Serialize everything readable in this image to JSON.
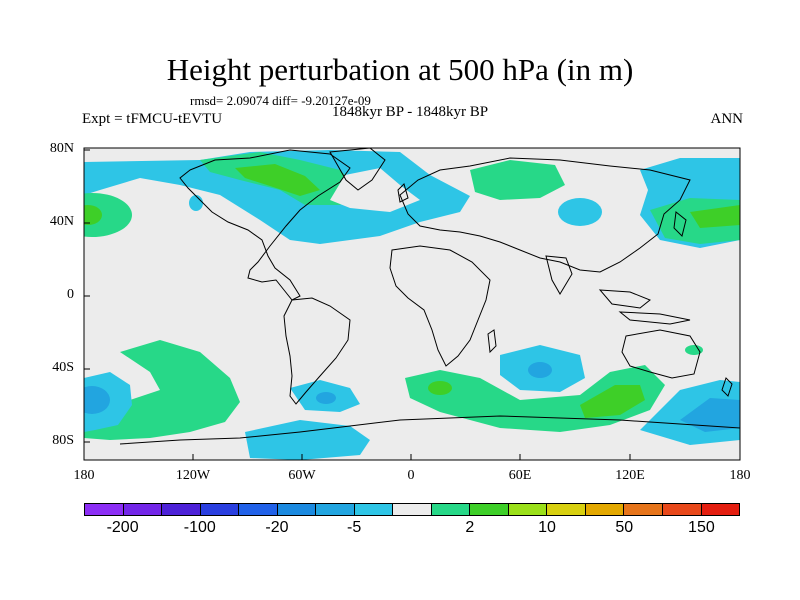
{
  "title": "Height perturbation at 500 hPa (in m)",
  "stats": "rmsd= 2.09074 diff= -9.20127e-09",
  "left_label": "Expt = tFMCU-tEVTU",
  "center_label": "1848kyr BP - 1848kyr BP",
  "right_label": "ANN",
  "lat_labels": [
    "80N",
    "40N",
    "0",
    "40S",
    "80S"
  ],
  "lon_labels": [
    "180",
    "120W",
    "60W",
    "0",
    "60E",
    "120E",
    "180"
  ],
  "colorbar": {
    "colors": [
      "#8c2ef5",
      "#7326e8",
      "#4d22d8",
      "#2a3fe0",
      "#2161e8",
      "#1b8ae0",
      "#22a5e0",
      "#2ec5e6",
      "#ececec",
      "#27d888",
      "#3ecf28",
      "#9be01a",
      "#d8d010",
      "#e3a800",
      "#e6741a",
      "#e8481a",
      "#e41e10"
    ],
    "labels": [
      "-200",
      "-100",
      "-20",
      "-5",
      "2",
      "10",
      "50",
      "150"
    ]
  },
  "colors": {
    "land_line": "#000000",
    "background_field": "#ececec",
    "light_blue": "#2ec5e6",
    "green": "#27d888",
    "bright_green": "#3ecf28",
    "mid_blue": "#22a5e0"
  }
}
